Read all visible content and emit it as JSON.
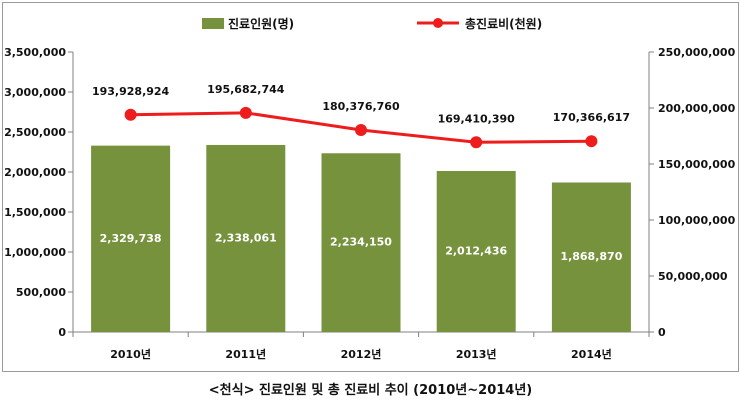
{
  "chart_data": {
    "type": "bar+line",
    "categories": [
      "2010년",
      "2011년",
      "2012년",
      "2013년",
      "2014년"
    ],
    "series": [
      {
        "name": "진료인원(명)",
        "type": "bar",
        "axis": "left",
        "values": [
          2329738,
          2338061,
          2234150,
          2012436,
          1868870
        ],
        "labels": [
          "2,329,738",
          "2,338,061",
          "2,234,150",
          "2,012,436",
          "1,868,870"
        ],
        "color": "#76923c"
      },
      {
        "name": "총진료비(천원)",
        "type": "line",
        "axis": "right",
        "values": [
          193928924,
          195682744,
          180376760,
          169410390,
          170366617
        ],
        "labels": [
          "193,928,924",
          "195,682,744",
          "180,376,760",
          "169,410,390",
          "170,366,617"
        ],
        "color": "#ee1c1c"
      }
    ],
    "y_left": {
      "ylim": [
        0,
        3500000
      ],
      "ticks": [
        0,
        500000,
        1000000,
        1500000,
        2000000,
        2500000,
        3000000,
        3500000
      ],
      "tick_labels": [
        "0",
        "500,000",
        "1,000,000",
        "1,500,000",
        "2,000,000",
        "2,500,000",
        "3,000,000",
        "3,500,000"
      ]
    },
    "y_right": {
      "ylim": [
        0,
        250000000
      ],
      "ticks": [
        0,
        50000000,
        100000000,
        150000000,
        200000000,
        250000000
      ],
      "tick_labels": [
        "0",
        "50,000,000",
        "100,000,000",
        "150,000,000",
        "200,000,000",
        "250,000,000"
      ]
    },
    "grid": false,
    "legend_position": "top"
  },
  "caption": "<천식> 진료인원 및 총 진료비 추이 (2010년~2014년)"
}
